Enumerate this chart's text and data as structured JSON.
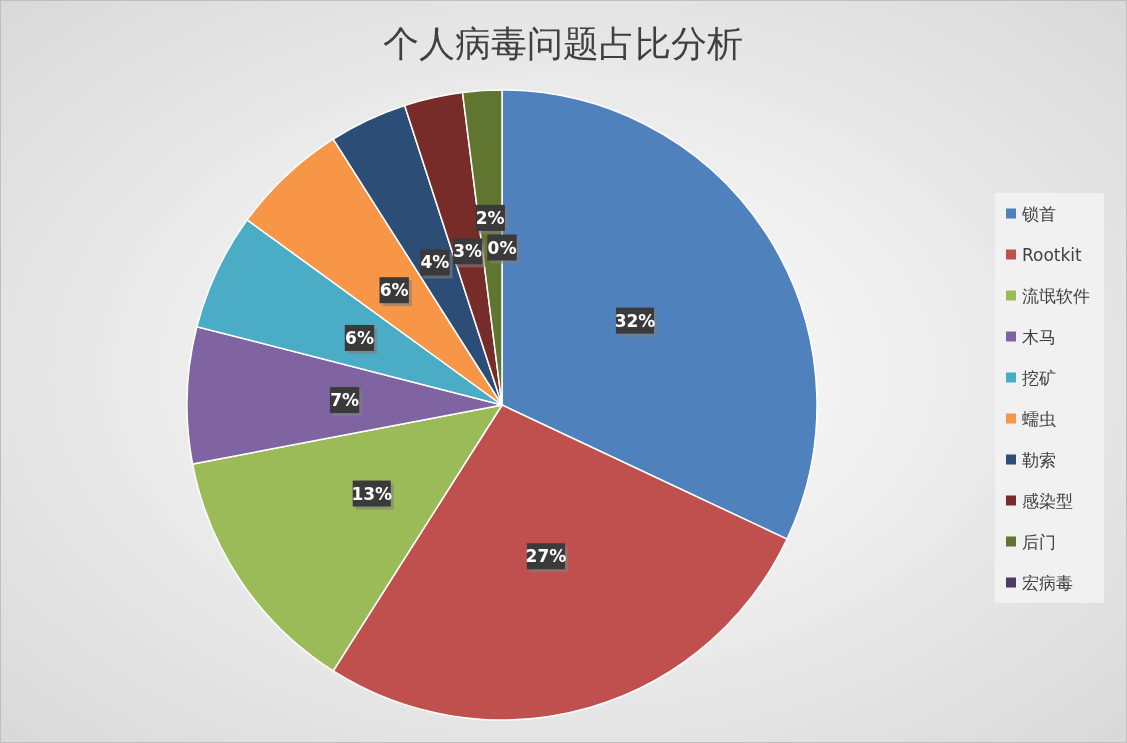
{
  "chart_data": {
    "type": "pie",
    "title": "个人病毒问题占比分析",
    "categories": [
      "锁首",
      "Rootkit",
      "流氓软件",
      "木马",
      "挖矿",
      "蠕虫",
      "勒索",
      "感染型",
      "后门",
      "宏病毒"
    ],
    "values": [
      32,
      27,
      13,
      7,
      6,
      6,
      4,
      3,
      2,
      0
    ],
    "value_labels": [
      "32%",
      "27%",
      "13%",
      "7%",
      "6%",
      "6%",
      "4%",
      "3%",
      "2%",
      "0%"
    ],
    "colors": [
      "#4f81bd",
      "#c0504d",
      "#9bbb59",
      "#8064a2",
      "#4bacc6",
      "#f79646",
      "#2c4d75",
      "#772c2a",
      "#5f7530",
      "#4d3b62"
    ],
    "legend": "right"
  }
}
